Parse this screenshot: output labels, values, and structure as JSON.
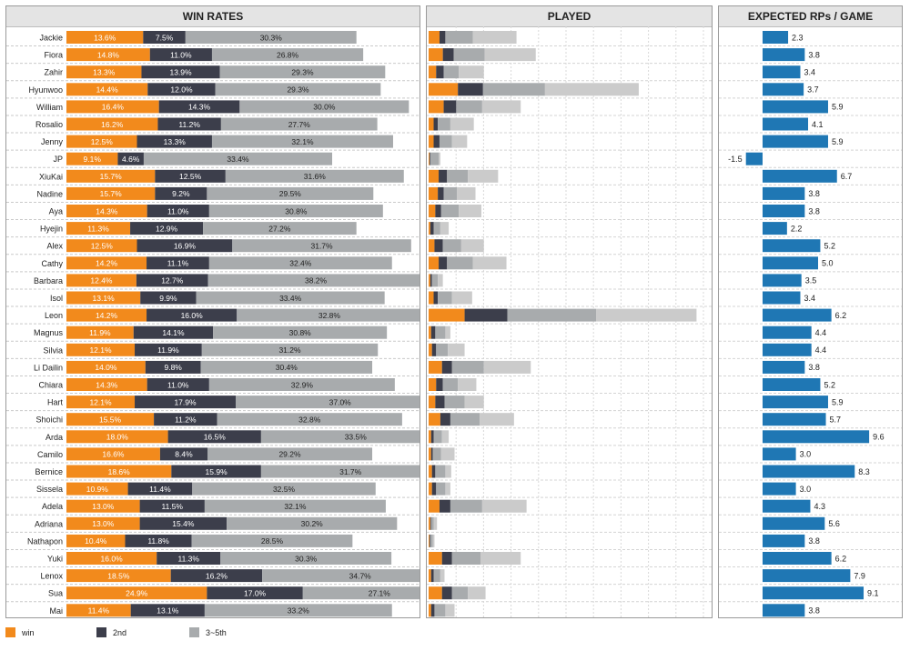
{
  "panels": {
    "win_rates_title": "WIN RATES",
    "played_title": "PLAYED",
    "rps_title": "EXPECTED RPs / GAME"
  },
  "legend": [
    {
      "label": "win",
      "color": "#f28a1c"
    },
    {
      "label": "2nd",
      "color": "#3c3e4b"
    },
    {
      "label": "3~5th",
      "color": "#a8abad"
    }
  ],
  "colors": {
    "win": "#f28a1c",
    "second": "#3c3e4b",
    "third_fifth": "#a8abad",
    "played_sixth_plus": "#cbcbcb",
    "rp_bar": "#1f77b4"
  },
  "chart_data": [
    {
      "type": "bar",
      "stacked": true,
      "orientation": "horizontal",
      "title": "WIN RATES",
      "categories": [
        "Jackie",
        "Fiora",
        "Zahir",
        "Hyunwoo",
        "William",
        "Rosalio",
        "Jenny",
        "JP",
        "XiuKai",
        "Nadine",
        "Aya",
        "Hyejin",
        "Alex",
        "Cathy",
        "Barbara",
        "Isol",
        "Leon",
        "Magnus",
        "Silvia",
        "Li Dailin",
        "Chiara",
        "Hart",
        "Shoichi",
        "Arda",
        "Camilo",
        "Bernice",
        "Sissela",
        "Adela",
        "Adriana",
        "Nathapon",
        "Yuki",
        "Lenox",
        "Sua",
        "Mai"
      ],
      "series": [
        {
          "name": "win",
          "values": [
            13.6,
            14.8,
            13.3,
            14.4,
            16.4,
            16.2,
            12.5,
            9.1,
            15.7,
            15.7,
            14.3,
            11.3,
            12.5,
            14.2,
            12.4,
            13.1,
            14.2,
            11.9,
            12.1,
            14.0,
            14.3,
            12.1,
            15.5,
            18.0,
            16.6,
            18.6,
            10.9,
            13.0,
            13.0,
            10.4,
            16.0,
            18.5,
            24.9,
            11.4
          ]
        },
        {
          "name": "2nd",
          "values": [
            7.5,
            11.0,
            13.9,
            12.0,
            14.3,
            11.2,
            13.3,
            4.6,
            12.5,
            9.2,
            11.0,
            12.9,
            16.9,
            11.1,
            12.7,
            9.9,
            16.0,
            14.1,
            11.9,
            9.8,
            11.0,
            17.9,
            11.2,
            16.5,
            8.4,
            15.9,
            11.4,
            11.5,
            15.4,
            11.8,
            11.3,
            16.2,
            17.0,
            13.1
          ]
        },
        {
          "name": "3~5th",
          "values": [
            30.3,
            26.8,
            29.3,
            29.3,
            30.0,
            27.7,
            32.1,
            33.4,
            31.6,
            29.5,
            30.8,
            27.2,
            31.7,
            32.4,
            38.2,
            33.4,
            32.8,
            30.8,
            31.2,
            30.4,
            32.9,
            37.0,
            32.8,
            33.5,
            29.2,
            31.7,
            32.5,
            32.1,
            30.2,
            28.5,
            30.3,
            34.7,
            27.1,
            33.2
          ]
        }
      ],
      "xlim": [
        0,
        80
      ]
    },
    {
      "type": "bar",
      "stacked": true,
      "orientation": "horizontal",
      "title": "PLAYED",
      "categories": [
        "Jackie",
        "Fiora",
        "Zahir",
        "Hyunwoo",
        "William",
        "Rosalio",
        "Jenny",
        "JP",
        "XiuKai",
        "Nadine",
        "Aya",
        "Hyejin",
        "Alex",
        "Cathy",
        "Barbara",
        "Isol",
        "Leon",
        "Magnus",
        "Silvia",
        "Li Dailin",
        "Chiara",
        "Hart",
        "Shoichi",
        "Arda",
        "Camilo",
        "Bernice",
        "Sissela",
        "Adela",
        "Adriana",
        "Nathapon",
        "Yuki",
        "Lenox",
        "Sua",
        "Mai"
      ],
      "series": [
        {
          "values": [
            13,
            17,
            9,
            35,
            18,
            6,
            6,
            1,
            12,
            11,
            8,
            2,
            7,
            12,
            2,
            6,
            43,
            3,
            4,
            16,
            9,
            8,
            14,
            3,
            3,
            4,
            4,
            13,
            2,
            1,
            16,
            3,
            16,
            3
          ]
        },
        {
          "values": [
            7,
            13,
            9,
            30,
            15,
            5,
            7,
            1,
            10,
            7,
            7,
            4,
            10,
            10,
            2,
            5,
            51,
            5,
            5,
            12,
            8,
            11,
            12,
            3,
            2,
            4,
            5,
            13,
            1,
            1,
            12,
            3,
            12,
            4
          ]
        },
        {
          "values": [
            33,
            37,
            18,
            74,
            31,
            15,
            15,
            10,
            25,
            16,
            21,
            8,
            22,
            31,
            7,
            17,
            106,
            12,
            14,
            38,
            18,
            24,
            35,
            10,
            10,
            12,
            11,
            38,
            3,
            3,
            34,
            8,
            19,
            13
          ]
        },
        {
          "values": [
            52,
            61,
            30,
            112,
            46,
            28,
            18,
            2,
            36,
            22,
            27,
            10,
            27,
            40,
            6,
            24,
            120,
            6,
            20,
            56,
            22,
            23,
            41,
            8,
            16,
            7,
            6,
            53,
            4,
            2,
            48,
            5,
            21,
            11
          ]
        }
      ],
      "xlim": [
        0,
        320
      ],
      "grid": true
    },
    {
      "type": "bar",
      "orientation": "horizontal",
      "title": "EXPECTED RPs / GAME",
      "categories": [
        "Jackie",
        "Fiora",
        "Zahir",
        "Hyunwoo",
        "William",
        "Rosalio",
        "Jenny",
        "JP",
        "XiuKai",
        "Nadine",
        "Aya",
        "Hyejin",
        "Alex",
        "Cathy",
        "Barbara",
        "Isol",
        "Leon",
        "Magnus",
        "Silvia",
        "Li Dailin",
        "Chiara",
        "Hart",
        "Shoichi",
        "Arda",
        "Camilo",
        "Bernice",
        "Sissela",
        "Adela",
        "Adriana",
        "Nathapon",
        "Yuki",
        "Lenox",
        "Sua",
        "Mai"
      ],
      "values": [
        2.3,
        3.8,
        3.4,
        3.7,
        5.9,
        4.1,
        5.9,
        -1.5,
        6.7,
        3.8,
        3.8,
        2.2,
        5.2,
        5.0,
        3.5,
        3.4,
        6.2,
        4.4,
        4.4,
        3.8,
        5.2,
        5.9,
        5.7,
        9.6,
        3.0,
        8.3,
        3.0,
        4.3,
        5.6,
        3.8,
        6.2,
        7.9,
        9.1,
        3.8
      ],
      "labels": [
        "2.3",
        "3.8",
        "3.4",
        "3.7",
        "5.9",
        "4.1",
        "5.9",
        "-1.5",
        "6.7",
        "3.8",
        "3.8",
        "2.2",
        "5.2",
        "5.0",
        "3.5",
        "3.4",
        "6.2",
        "4.4",
        "4.4",
        "3.8",
        "5.2",
        "5.9",
        "5.7",
        "9.6",
        "3.0",
        "8.3",
        "3.0",
        "4.3",
        "5.6",
        "3.8",
        "6.2",
        "7.9",
        "9.1",
        "3.8"
      ],
      "xlim": [
        -2.2,
        10.8
      ]
    }
  ]
}
